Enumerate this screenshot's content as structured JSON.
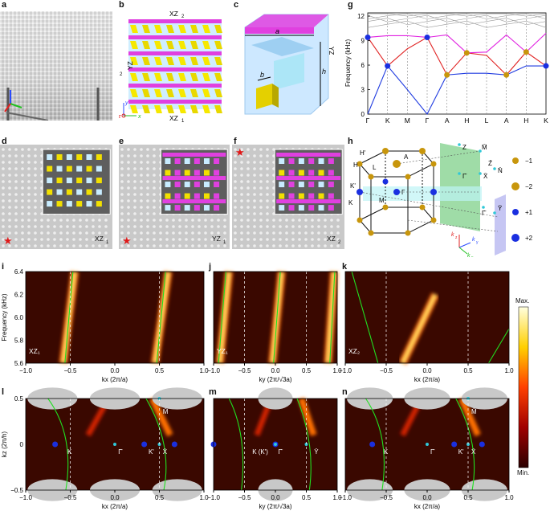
{
  "panels": {
    "a": "a",
    "b": "b",
    "c": "c",
    "d": "d",
    "e": "e",
    "f": "f",
    "g": "g",
    "h": "h",
    "i": "i",
    "j": "j",
    "k": "k",
    "l": "l",
    "m": "m",
    "n": "n"
  },
  "b": {
    "top": "XZ",
    "top_sub": "2",
    "bottom": "XZ",
    "bottom_sub": "1",
    "left": "YZ",
    "left_sub": "2",
    "axis_y": "y",
    "axis_x": "x",
    "axis_z": "z"
  },
  "c": {
    "a": "a",
    "b": "b",
    "h": "h",
    "right": "YZ",
    "right_sub": "1"
  },
  "d": {
    "label": "XZ",
    "sub": "1"
  },
  "e": {
    "label": "YZ",
    "sub": "1"
  },
  "f": {
    "label": "XZ",
    "sub": "2"
  },
  "g": {
    "ylabel": "Frequency (kHz)",
    "yticks": [
      "0",
      "3",
      "6",
      "9",
      "12"
    ],
    "xticks": [
      "Γ",
      "K",
      "M",
      "Γ",
      "A",
      "H",
      "L",
      "A",
      "H",
      "K"
    ]
  },
  "h": {
    "points": [
      "H'",
      "H",
      "L",
      "A",
      "K'",
      "K",
      "M",
      "Γ",
      "Z",
      "M̄",
      "Γ̄",
      "X̄",
      "N̄",
      "Z̄",
      "Γ̄",
      "Ȳ"
    ],
    "legend": [
      "−1",
      "−2",
      "+1",
      "+2"
    ],
    "axes": [
      "k",
      "z",
      "k",
      "y",
      "k",
      "x"
    ]
  },
  "chart_data": [
    {
      "type": "line",
      "title": "",
      "xlabel": "",
      "ylabel": "Frequency (kHz)",
      "ylim": [
        0,
        12.4
      ],
      "categories": [
        "Γ",
        "K",
        "M",
        "Γ",
        "A",
        "H",
        "L",
        "A",
        "H",
        "K"
      ],
      "series": [
        {
          "color": "#1f3be0",
          "values": [
            0,
            5.9,
            3.0,
            0,
            4.8,
            5.0,
            5.0,
            4.8,
            5.9,
            5.9
          ]
        },
        {
          "color": "#e02020",
          "values": [
            9.4,
            5.9,
            8.0,
            9.4,
            4.8,
            7.5,
            7.2,
            4.8,
            7.6,
            5.9
          ]
        },
        {
          "color": "#e020e0",
          "values": [
            9.4,
            9.6,
            9.6,
            9.4,
            9.7,
            7.5,
            7.6,
            9.7,
            7.6,
            9.9
          ]
        }
      ]
    },
    {
      "type": "heatmap",
      "panel": "i",
      "label": "XZ₁",
      "xlabel": "kx (2π/a)",
      "ylabel": "Frequency (kHz)",
      "xlim": [
        -1.0,
        1.0
      ],
      "ylim": [
        5.6,
        6.4
      ],
      "xticks": [
        "−1.0",
        "−0.5",
        "0.0",
        "0.5",
        "1.0"
      ],
      "yticks": [
        "5.6",
        "5.8",
        "6.0",
        "6.2",
        "6.4"
      ],
      "colorbar": [
        "Max.",
        "Min."
      ]
    },
    {
      "type": "heatmap",
      "panel": "j",
      "label": "YZ₁",
      "xlabel": "ky (2π/√3a)",
      "xlim": [
        -1.0,
        1.0
      ],
      "ylim": [
        5.6,
        6.4
      ],
      "xticks": [
        "−1.0",
        "−0.5",
        "0.0",
        "0.5",
        "1.0"
      ]
    },
    {
      "type": "heatmap",
      "panel": "k",
      "label": "XZ₂",
      "xlabel": "kx (2π/a)",
      "xlim": [
        -1.0,
        1.0
      ],
      "ylim": [
        5.6,
        6.4
      ],
      "xticks": [
        "−1.0",
        "−0.5",
        "0.0",
        "0.5",
        "1.0"
      ]
    },
    {
      "type": "heatmap",
      "panel": "l",
      "xlabel": "kx (2π/a)",
      "ylabel": "kz (2π/h)",
      "xlim": [
        -1.0,
        1.0
      ],
      "ylim": [
        -0.5,
        0.5
      ],
      "xticks": [
        "−1.0",
        "−0.5",
        "0.0",
        "0.5",
        "1.0"
      ],
      "yticks": [
        "−0.5",
        "0",
        "0.5"
      ],
      "points": [
        "K",
        "K'",
        "Γ̄",
        "X̄",
        "M̄"
      ]
    },
    {
      "type": "heatmap",
      "panel": "m",
      "xlabel": "ky (2π/√3a)",
      "xlim": [
        -1.0,
        1.0
      ],
      "ylim": [
        -0.5,
        0.5
      ],
      "xticks": [
        "−1.0",
        "−0.5",
        "0.0",
        "0.5",
        "1.0"
      ],
      "points": [
        "K (K')",
        "Γ̄",
        "Ȳ"
      ]
    },
    {
      "type": "heatmap",
      "panel": "n",
      "xlabel": "kx (2π/a)",
      "xlim": [
        -1.0,
        1.0
      ],
      "ylim": [
        -0.5,
        0.5
      ],
      "xticks": [
        "−1.0",
        "−0.5",
        "0.0",
        "0.5",
        "1.0"
      ],
      "points": [
        "K",
        "K'",
        "Γ̄",
        "X̄",
        "M̄"
      ]
    }
  ],
  "colorbar": {
    "max": "Max.",
    "min": "Min."
  }
}
